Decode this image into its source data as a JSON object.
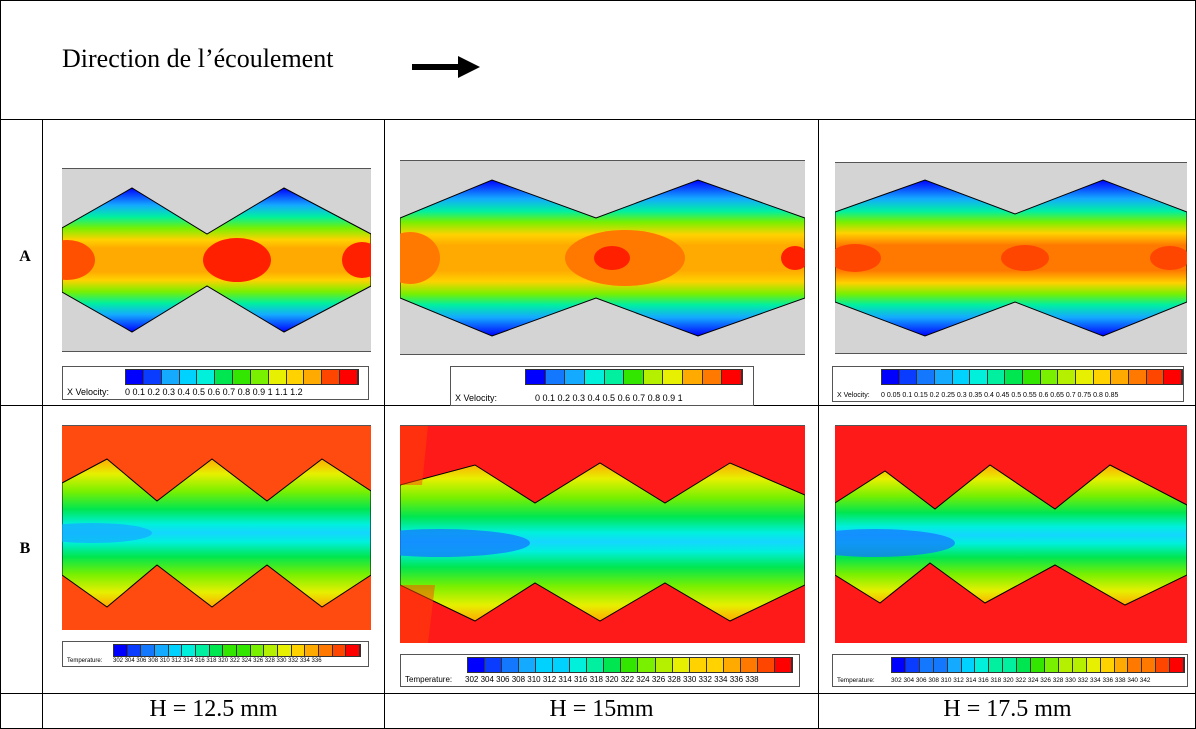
{
  "header": {
    "title": "Direction de l’écoulement"
  },
  "rows": [
    {
      "label": "A"
    },
    {
      "label": "B"
    }
  ],
  "columns": [
    {
      "label": "H = 12.5 mm"
    },
    {
      "label": "H = 15mm"
    },
    {
      "label": "H = 17.5 mm"
    }
  ],
  "legends": {
    "a1": {
      "title": "X Velocity:",
      "ticks": "0  0.1 0.2 0.3 0.4 0.5 0.6 0.7 0.8 0.9  1  1.1 1.2"
    },
    "a2": {
      "title": "X Velocity:",
      "ticks": "0  0.1 0.2 0.3 0.4 0.5 0.6 0.7 0.8 0.9  1"
    },
    "a3": {
      "title": "X Velocity:",
      "ticks": "0  0.05  0.1  0.15  0.2  0.25  0.3  0.35  0.4  0.45  0.5  0.55  0.6  0.65  0.7  0.75  0.8  0.85"
    },
    "b1": {
      "title": "Temperature:",
      "ticks": "302 304 306 308 310 312 314 316 318 320 322 324 326 328 330 332 334 336"
    },
    "b2": {
      "title": "Temperature:",
      "ticks": "302  304  306  308  310  312  314  316  318  320  322  324  326  328  330  332  334  336  338"
    },
    "b3": {
      "title": "Temperature:",
      "ticks": "302 304 306 308 310 312 314 316 318 320 322 324 326 328 330 332 334 336 338 340 342"
    }
  },
  "colors": {
    "scale": [
      "#0000ff",
      "#0a3cff",
      "#1478ff",
      "#14aaff",
      "#00d2ff",
      "#00f0dc",
      "#00f0a0",
      "#00e650",
      "#32e600",
      "#78f000",
      "#b4f000",
      "#e6f000",
      "#ffd200",
      "#ffaa00",
      "#ff7800",
      "#ff4600",
      "#ff0000"
    ]
  }
}
